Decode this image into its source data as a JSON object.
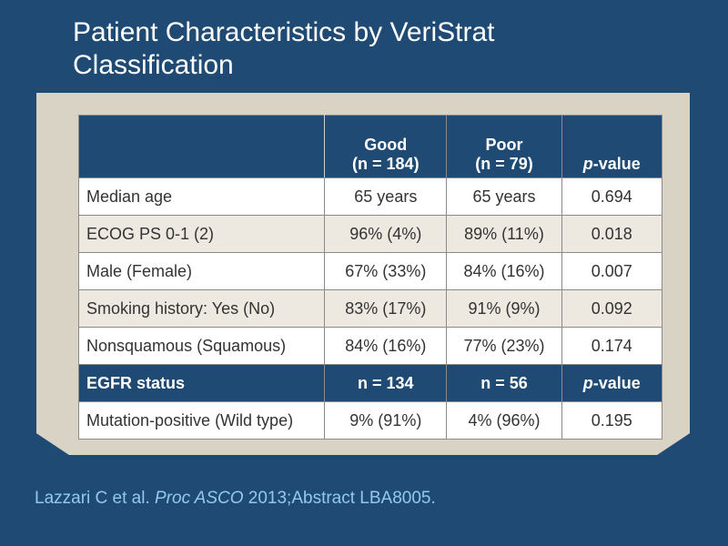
{
  "title_line1": "Patient Characteristics by VeriStrat",
  "title_line2": "Classification",
  "table": {
    "header": {
      "good_line1": "Good",
      "good_line2": "(n = 184)",
      "poor_line1": "Poor",
      "poor_line2": "(n = 79)",
      "pvalue_italic": "p",
      "pvalue_rest": "-value"
    },
    "rows": [
      {
        "label": "Median age",
        "good": "65 years",
        "poor": "65 years",
        "p": "0.694"
      },
      {
        "label": "ECOG PS 0-1 (2)",
        "good": "96% (4%)",
        "poor": "89% (11%)",
        "p": "0.018"
      },
      {
        "label": "Male (Female)",
        "good": "67% (33%)",
        "poor": "84% (16%)",
        "p": "0.007"
      },
      {
        "label": "Smoking history: Yes (No)",
        "good": "83% (17%)",
        "poor": "91% (9%)",
        "p": "0.092"
      },
      {
        "label": "Nonsquamous (Squamous)",
        "good": "84% (16%)",
        "poor": "77% (23%)",
        "p": "0.174"
      }
    ],
    "subheader": {
      "label": "EGFR status",
      "good": "n = 134",
      "poor": "n = 56",
      "pvalue_italic": "p",
      "pvalue_rest": "-value"
    },
    "egfr_rows": [
      {
        "label": "Mutation-positive (Wild type)",
        "good": "9% (91%)",
        "poor": "4% (96%)",
        "p": "0.195"
      }
    ]
  },
  "citation": {
    "authors": "Lazzari C et al. ",
    "journal": "Proc ASCO",
    "rest": " 2013;Abstract LBA8005."
  }
}
